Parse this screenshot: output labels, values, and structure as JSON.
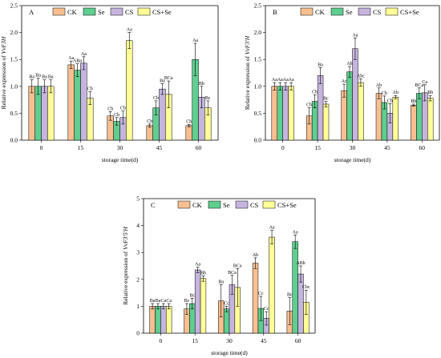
{
  "colors": {
    "CK": "#f7bf91",
    "Se": "#5fce8f",
    "CS": "#c5b5de",
    "CS+Se": "#ffff99"
  },
  "legend": [
    "CK",
    "Se",
    "CS",
    "CS+Se"
  ],
  "chart_data": [
    {
      "type": "bar",
      "panel": "A",
      "xlabel": "storage time(d)",
      "ylabel_prefix": "Relative expression of ",
      "ylabel_gene": "VvF3H",
      "categories": [
        "0",
        "15",
        "30",
        "45",
        "60"
      ],
      "ylim": [
        0,
        2.5
      ],
      "yticks": [
        "0.0",
        "0.5",
        "1.0",
        "1.5",
        "2.0",
        "2.5"
      ],
      "series": [
        {
          "name": "CK",
          "values": [
            1.0,
            1.4,
            0.45,
            0.27,
            0.27
          ],
          "errors": [
            0.12,
            0.07,
            0.08,
            0.03,
            0.02
          ],
          "letters": [
            "Ba",
            "Aa",
            "Cb",
            "Cb",
            "Cb"
          ]
        },
        {
          "name": "Se",
          "values": [
            1.0,
            1.3,
            0.35,
            0.6,
            1.5
          ],
          "errors": [
            0.15,
            0.12,
            0.07,
            0.13,
            0.3
          ],
          "letters": [
            "Ba",
            "ABa",
            "Cb",
            "Cb",
            "Aa"
          ]
        },
        {
          "name": "CS",
          "values": [
            1.0,
            1.43,
            0.42,
            0.95,
            0.8
          ],
          "errors": [
            0.12,
            0.12,
            0.12,
            0.1,
            0.2
          ],
          "letters": [
            "Ba",
            "Aa",
            "Cb",
            "Ba",
            "Bb"
          ]
        },
        {
          "name": "CS+Se",
          "values": [
            1.0,
            0.78,
            1.85,
            0.85,
            0.6
          ],
          "errors": [
            0.12,
            0.12,
            0.15,
            0.25,
            0.13
          ],
          "letters": [
            "Ba",
            "Cb",
            "Aa",
            "BCa",
            "Bc"
          ]
        }
      ]
    },
    {
      "type": "bar",
      "panel": "B",
      "xlabel": "storage time(d)",
      "ylabel_prefix": "Relative expression of ",
      "ylabel_gene": "VvF3'H",
      "categories": [
        "0",
        "15",
        "30",
        "45",
        "60"
      ],
      "ylim": [
        0,
        2.5
      ],
      "yticks": [
        "0.0",
        "0.5",
        "1.0",
        "1.5",
        "2.0",
        "2.5"
      ],
      "series": [
        {
          "name": "CK",
          "values": [
            1.0,
            0.45,
            0.92,
            0.87,
            0.65
          ],
          "errors": [
            0.07,
            0.15,
            0.12,
            0.1,
            0.02
          ],
          "letters": [
            "Aa",
            "Cb",
            "Ac",
            "Ab",
            "Bb"
          ]
        },
        {
          "name": "Se",
          "values": [
            1.0,
            0.72,
            1.27,
            0.7,
            0.87
          ],
          "errors": [
            0.07,
            0.12,
            0.1,
            0.12,
            0.1
          ],
          "letters": [
            "Aa",
            "Cb",
            "Ab",
            "Cb",
            "BCa"
          ]
        },
        {
          "name": "CS",
          "values": [
            1.0,
            1.2,
            1.7,
            0.5,
            0.88
          ],
          "errors": [
            0.07,
            0.15,
            0.2,
            0.18,
            0.15
          ],
          "letters": [
            "Aa",
            "Ba",
            "Aa",
            "Cb",
            "Ca"
          ]
        },
        {
          "name": "CS+Se",
          "values": [
            1.0,
            0.67,
            1.07,
            0.8,
            0.78
          ],
          "errors": [
            0.07,
            0.05,
            0.07,
            0.03,
            0.05
          ],
          "letters": [
            "Aa",
            "Bc",
            "Abc",
            "Ab",
            "Bb"
          ]
        }
      ]
    },
    {
      "type": "bar",
      "panel": "C",
      "xlabel": "storage time(d)",
      "ylabel_prefix": "Relative expression of ",
      "ylabel_gene": "VvF3'5'H",
      "categories": [
        "0",
        "15",
        "30",
        "45",
        "60"
      ],
      "ylim": [
        0,
        5
      ],
      "yticks": [
        "0",
        "1",
        "2",
        "3",
        "4",
        "5"
      ],
      "series": [
        {
          "name": "CK",
          "values": [
            1.0,
            0.9,
            1.2,
            2.6,
            0.82
          ],
          "errors": [
            0.1,
            0.2,
            0.6,
            0.2,
            0.5
          ],
          "letters": [
            "Ba",
            "Bc",
            "Ba",
            "Ab",
            "Bc"
          ]
        },
        {
          "name": "Se",
          "values": [
            1.0,
            1.1,
            0.9,
            0.92,
            3.4
          ],
          "errors": [
            0.1,
            0.2,
            0.1,
            0.45,
            0.25
          ],
          "letters": [
            "Ba",
            "Bc",
            "Cc",
            "Cc",
            "Aa"
          ]
        },
        {
          "name": "CS",
          "values": [
            1.0,
            2.35,
            1.8,
            0.55,
            2.2
          ],
          "errors": [
            0.1,
            0.1,
            0.35,
            0.25,
            0.3
          ],
          "letters": [
            "Ca",
            "Aa",
            "BCa",
            "Cc",
            "ABb"
          ]
        },
        {
          "name": "CS+Se",
          "values": [
            1.0,
            2.03,
            1.7,
            3.57,
            1.15
          ],
          "errors": [
            0.1,
            0.1,
            0.7,
            0.25,
            0.45
          ],
          "letters": [
            "Ca",
            "Bb",
            "BCa",
            "Aa",
            "Cbc"
          ]
        }
      ]
    }
  ]
}
